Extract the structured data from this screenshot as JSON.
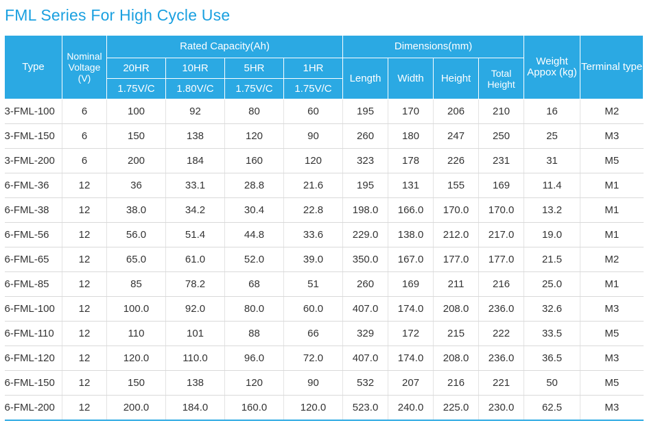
{
  "title": "FML Series For High Cycle Use",
  "header": {
    "type": "Type",
    "nominal_voltage": "Nominal Voltage (V)",
    "rated_capacity": "Rated Capacity(Ah)",
    "dimensions": "Dimensions(mm)",
    "weight": "Weight Appox (kg)",
    "terminal": "Terminal type",
    "rates": [
      "20HR",
      "10HR",
      "5HR",
      "1HR"
    ],
    "voltages": [
      "1.75V/C",
      "1.80V/C",
      "1.75V/C",
      "1.75V/C"
    ],
    "dims": [
      "Length",
      "Width",
      "Height",
      "Total Height"
    ]
  },
  "colors": {
    "accent": "#2ba9e3",
    "title": "#1aa0e0"
  },
  "rows": [
    [
      "3-FML-100",
      "6",
      "100",
      "92",
      "80",
      "60",
      "195",
      "170",
      "206",
      "210",
      "16",
      "M2"
    ],
    [
      "3-FML-150",
      "6",
      "150",
      "138",
      "120",
      "90",
      "260",
      "180",
      "247",
      "250",
      "25",
      "M3"
    ],
    [
      "3-FML-200",
      "6",
      "200",
      "184",
      "160",
      "120",
      "323",
      "178",
      "226",
      "231",
      "31",
      "M5"
    ],
    [
      "6-FML-36",
      "12",
      "36",
      "33.1",
      "28.8",
      "21.6",
      "195",
      "131",
      "155",
      "169",
      "11.4",
      "M1"
    ],
    [
      "6-FML-38",
      "12",
      "38.0",
      "34.2",
      "30.4",
      "22.8",
      "198.0",
      "166.0",
      "170.0",
      "170.0",
      "13.2",
      "M1"
    ],
    [
      "6-FML-56",
      "12",
      "56.0",
      "51.4",
      "44.8",
      "33.6",
      "229.0",
      "138.0",
      "212.0",
      "217.0",
      "19.0",
      "M1"
    ],
    [
      "6-FML-65",
      "12",
      "65.0",
      "61.0",
      "52.0",
      "39.0",
      "350.0",
      "167.0",
      "177.0",
      "177.0",
      "21.5",
      "M2"
    ],
    [
      "6-FML-85",
      "12",
      "85",
      "78.2",
      "68",
      "51",
      "260",
      "169",
      "211",
      "216",
      "25.0",
      "M1"
    ],
    [
      "6-FML-100",
      "12",
      "100.0",
      "92.0",
      "80.0",
      "60.0",
      "407.0",
      "174.0",
      "208.0",
      "236.0",
      "32.6",
      "M3"
    ],
    [
      "6-FML-110",
      "12",
      "110",
      "101",
      "88",
      "66",
      "329",
      "172",
      "215",
      "222",
      "33.5",
      "M5"
    ],
    [
      "6-FML-120",
      "12",
      "120.0",
      "110.0",
      "96.0",
      "72.0",
      "407.0",
      "174.0",
      "208.0",
      "236.0",
      "36.5",
      "M3"
    ],
    [
      "6-FML-150",
      "12",
      "150",
      "138",
      "120",
      "90",
      "532",
      "207",
      "216",
      "221",
      "50",
      "M5"
    ],
    [
      "6-FML-200",
      "12",
      "200.0",
      "184.0",
      "160.0",
      "120.0",
      "523.0",
      "240.0",
      "225.0",
      "230.0",
      "62.5",
      "M3"
    ]
  ]
}
